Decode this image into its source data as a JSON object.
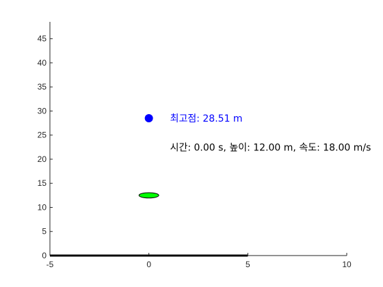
{
  "chart_data": {
    "type": "scatter",
    "xlim": [
      -5,
      10
    ],
    "ylim": [
      0,
      48.5
    ],
    "x_ticks": [
      -5,
      0,
      5,
      10
    ],
    "y_ticks": [
      0,
      5,
      10,
      15,
      20,
      25,
      30,
      35,
      40,
      45
    ],
    "grid": false,
    "ground": {
      "x": [
        -5,
        5
      ],
      "y": [
        0,
        0
      ],
      "color": "#000000"
    },
    "peak_marker": {
      "x": 0,
      "y": 28.51,
      "color": "#0000ff"
    },
    "ball": {
      "x": 0,
      "y": 12.5,
      "rx": 0.5,
      "ry": 0.55,
      "color": "#00ff00"
    },
    "annotations": [
      {
        "text": "최고점: 28.51 m",
        "x": 1,
        "y": 28.51,
        "color": "#0000ff"
      },
      {
        "text": "시간: 0.00 s, 높이: 12.00 m, 속도: 18.00 m/s",
        "x": 1,
        "y": 22.5,
        "color": "#000000"
      }
    ]
  }
}
